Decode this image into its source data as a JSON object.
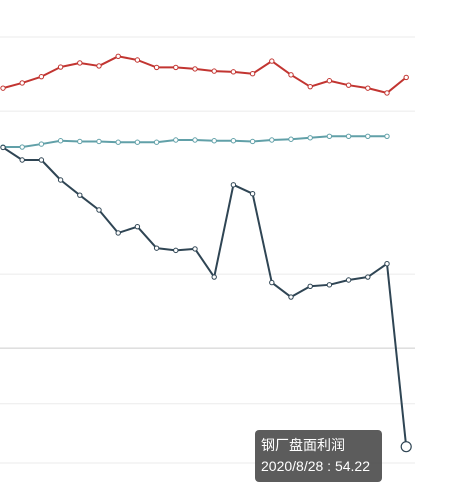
{
  "chart_data": {
    "type": "line",
    "series": [
      {
        "name": "",
        "color": "#c23531",
        "values": [
          70.2,
          71.6,
          73.3,
          75.9,
          77.0,
          76.2,
          78.8,
          77.8,
          75.8,
          75.8,
          75.4,
          74.8,
          74.6,
          74.1,
          77.5,
          73.8,
          70.6,
          72.2,
          71.0,
          70.2,
          68.9,
          73.1
        ]
      },
      {
        "name": "",
        "color": "#61a0a8",
        "values": [
          54.3,
          54.3,
          55.1,
          56.0,
          55.8,
          55.8,
          55.6,
          55.6,
          55.6,
          56.2,
          56.2,
          56.0,
          56.0,
          55.8,
          56.2,
          56.4,
          56.8,
          57.2,
          57.2,
          57.2,
          57.2
        ]
      },
      {
        "name": "钢厂盘面利润",
        "color": "#2f4554",
        "values": [
          54.2,
          50.8,
          50.8,
          45.4,
          41.3,
          37.3,
          31.1,
          32.8,
          27.0,
          26.4,
          26.8,
          19.2,
          44.1,
          41.7,
          17.7,
          13.8,
          16.7,
          17.1,
          18.4,
          19.2,
          22.8,
          -26.6
        ]
      }
    ],
    "ylim": [
      -41,
      94
    ],
    "grid": true,
    "tooltip": {
      "title": "钢厂盘面利润",
      "body": "2020/8/28 : 54.22"
    }
  }
}
